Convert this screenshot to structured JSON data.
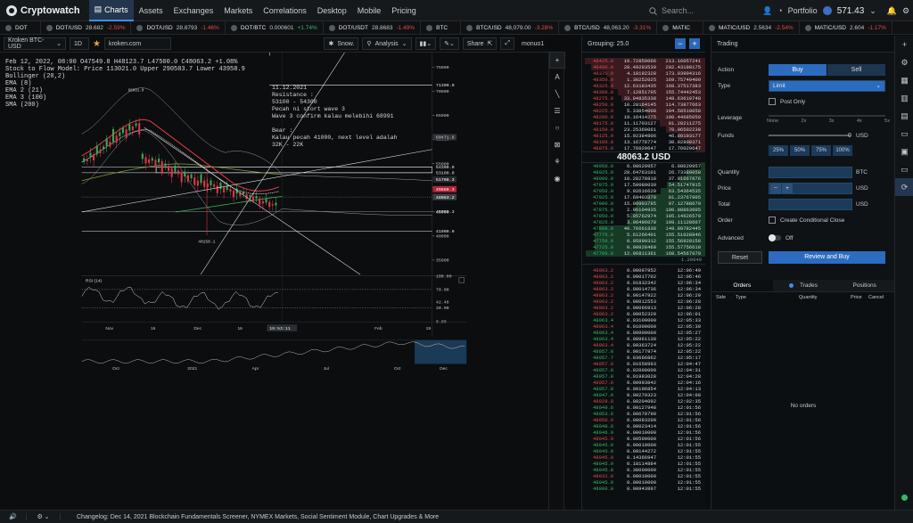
{
  "app": {
    "name": "Cryptowatch"
  },
  "nav": {
    "items": [
      "Charts",
      "Assets",
      "Exchanges",
      "Markets",
      "Correlations",
      "Desktop",
      "Mobile",
      "Pricing"
    ],
    "active": "Charts"
  },
  "search": {
    "placeholder": "Search..."
  },
  "account": {
    "portfolio": "Portfolio",
    "balance": "571.43"
  },
  "ticker": [
    {
      "sym": "DOT",
      "val": "",
      "chg": ""
    },
    {
      "sym": "DOT/USD",
      "val": "28.682",
      "chg": "-2.59%"
    },
    {
      "sym": "DOT/USD",
      "val": "28.8793",
      "chg": "-1.46%"
    },
    {
      "sym": "DOT/BTC",
      "val": "0.000601",
      "chg": "+1.74%"
    },
    {
      "sym": "DOT/USDT",
      "val": "28.8683",
      "chg": "-1.49%"
    },
    {
      "sym": "BTC",
      "val": "",
      "chg": ""
    },
    {
      "sym": "BTC/USD",
      "val": "48,079.00",
      "chg": "-3.28%"
    },
    {
      "sym": "BTC/USD",
      "val": "48,063.20",
      "chg": "-3.31%"
    },
    {
      "sym": "MATIC",
      "val": "",
      "chg": ""
    },
    {
      "sym": "MATIC/USD",
      "val": "2.5634",
      "chg": "-2.54%"
    },
    {
      "sym": "MATIC/USD",
      "val": "2.604",
      "chg": "-1.17%"
    }
  ],
  "chart_toolbar": {
    "market": "Kroken BTC-USD",
    "interval": "1D",
    "exchange": "kroken.com",
    "snow": "Snow.",
    "analysis": "Analysis",
    "share": "Share",
    "user": "monuo1"
  },
  "chart_info": {
    "line1": "Feb 12, 2022, 08:00  O47549.8  H48123.7  L47500.0  C48063.2 +1.08%",
    "line2": "Stock to Flow Model:  Price 113021.0  Upper 290583.7  Lower 43958.9",
    "indicators": [
      "Bollinger (20,2)",
      "EMA (8)",
      "EMA 2 (21)",
      "EMA 3 (100)",
      "SMA (200)"
    ]
  },
  "annotation": {
    "date": "11.12.2021",
    "text": [
      "Resistance :",
      "53100 - 54300",
      "Pecah ni stort wave 3",
      "Wave 3 confirm kalau melebihi 68991",
      "",
      "Bear :",
      "Kalau pecah 41000, next level adalah",
      "32K - 22K"
    ]
  },
  "labels": {
    "low": "40150.1",
    "hi_note": "68991.0",
    "crosshair_time": "19:53:11"
  },
  "chart_data": {
    "type": "candlestick",
    "price_ticks": [
      "75000",
      "70000",
      "65000",
      "60000",
      "55000",
      "50000",
      "45000",
      "40000",
      "35000"
    ],
    "price_labels": [
      {
        "v": "71300.0",
        "c": "#e8e8e8",
        "bg": "transparent"
      },
      {
        "v": "60471.6",
        "c": "#d0d0d0",
        "bg": "#303338"
      },
      {
        "v": "54300.0",
        "c": "#e8e8e8",
        "bg": "transparent"
      },
      {
        "v": "53100.0",
        "c": "#e8e8e8",
        "bg": "transparent"
      },
      {
        "v": "51708.3",
        "c": "#ffffff",
        "bg": "#262a2e"
      },
      {
        "v": "49689.3",
        "c": "#ffffff",
        "bg": "#b02535"
      },
      {
        "v": "48063.2",
        "c": "#ffffff",
        "bg": "#3c4046"
      },
      {
        "v": "45059.3",
        "c": "#e8e8e8",
        "bg": "transparent"
      },
      {
        "v": "41000.0",
        "c": "#e8e8e8",
        "bg": "transparent"
      }
    ],
    "x_ticks": [
      "Nov",
      "16",
      "Dec",
      "16",
      "Jan",
      "Feb",
      "19"
    ],
    "nav_ticks": [
      "Oct",
      "2021",
      "Apr",
      "Jul",
      "Oct",
      "Dec"
    ],
    "rsi": {
      "title": "RSI (14)",
      "ticks": [
        "100.00",
        "70.00",
        "42.48",
        "30.00",
        "0.00"
      ],
      "marker": "18.48"
    }
  },
  "orderbook": {
    "grouping": "Grouping: 25.0",
    "mid": "48063.2 USD",
    "spread": "1.20649",
    "asks": [
      [
        "48425.0",
        "10.72859066",
        "213.16057241"
      ],
      [
        "48400.0",
        "28.49293539",
        "202.43198175"
      ],
      [
        "48375.0",
        "4.18192328",
        "173.93904316"
      ],
      [
        "48350.0",
        "1.38252025",
        "169.75749409"
      ],
      [
        "48325.0",
        "12.63183435",
        "168.37517383"
      ],
      [
        "48300.0",
        "7.12851705",
        "155.74442453"
      ],
      [
        "48275.0",
        "33.94835338",
        "148.63610748"
      ],
      [
        "48250.0",
        "10.28164145",
        "114.73877663"
      ],
      [
        "48225.0",
        "5.33854008",
        "104.58510058"
      ],
      [
        "48200.0",
        "19.16414275",
        "100.44685050"
      ],
      [
        "48175.0",
        "11.11703127",
        "81.28211275"
      ],
      [
        "48150.0",
        "23.25369061",
        "70.06502238"
      ],
      [
        "48125.0",
        "15.92384806",
        "46.80193177"
      ],
      [
        "48100.0",
        "13.16778774",
        "30.92808371"
      ],
      [
        "48075.0",
        "17.76029647",
        "17.76029647"
      ]
    ],
    "bids": [
      [
        "48050.0",
        "6.08629957",
        "6.08629957"
      ],
      [
        "48025.0",
        "20.64763101",
        "26.73389058"
      ],
      [
        "48000.0",
        "10.28278818",
        "37.01667876"
      ],
      [
        "47975.0",
        "17.50080039",
        "54.51747915"
      ],
      [
        "47950.0",
        "9.02616620",
        "63.54364535"
      ],
      [
        "47925.0",
        "17.69403370",
        "81.23767905"
      ],
      [
        "47900.0",
        "15.98903785",
        "97.12788670"
      ],
      [
        "47875.0",
        "2.96104935",
        "100.08863605"
      ],
      [
        "47850.0",
        "5.05762974",
        "105.14626579"
      ],
      [
        "47825.0",
        "3.96496078",
        "109.11128607"
      ],
      [
        "47800.0",
        "40.76661838",
        "149.89782445"
      ],
      [
        "47775.0",
        "5.61266401",
        "155.51028846"
      ],
      [
        "47750.0",
        "0.05899312",
        "155.56928158"
      ],
      [
        "47725.0",
        "0.00828460",
        "155.57756618"
      ],
      [
        "47700.0",
        "12.96811361",
        "168.54567979"
      ]
    ],
    "trades": [
      [
        "48063.2",
        "0.00097952",
        "12:06:49"
      ],
      [
        "48063.2",
        "0.00017702",
        "12:06:46"
      ],
      [
        "48063.2",
        "0.01832342",
        "12:06:34"
      ],
      [
        "48063.2",
        "0.00014736",
        "12:06:34"
      ],
      [
        "48063.2",
        "0.00147922",
        "12:06:29"
      ],
      [
        "48063.2",
        "0.00012553",
        "12:06:28"
      ],
      [
        "48063.2",
        "0.00066913",
        "12:06:28"
      ],
      [
        "48063.2",
        "0.00052329",
        "12:06:01"
      ],
      [
        "48063.4",
        "0.03100000",
        "12:05:33"
      ],
      [
        "48063.4",
        "0.01000000",
        "12:05:30"
      ],
      [
        "48063.4",
        "0.00900000",
        "12:05:27"
      ],
      [
        "48063.4",
        "0.00961138",
        "12:05:22"
      ],
      [
        "48063.4",
        "0.00363724",
        "12:05:22"
      ],
      [
        "48057.8",
        "0.00177974",
        "12:05:22"
      ],
      [
        "48057.7",
        "0.03666862",
        "12:05:17"
      ],
      [
        "48057.8",
        "0.01658993",
        "12:04:47"
      ],
      [
        "48057.8",
        "0.02000000",
        "12:04:31"
      ],
      [
        "48057.8",
        "0.01983028",
        "12:04:28"
      ],
      [
        "48057.8",
        "0.00993842",
        "12:04:16"
      ],
      [
        "48057.8",
        "0.00196854",
        "12:04:13"
      ],
      [
        "48047.9",
        "0.00270323",
        "12:04:08"
      ],
      [
        "48029.0",
        "0.00204092",
        "12:02:35"
      ],
      [
        "48049.6",
        "0.00127948",
        "12:01:56"
      ],
      [
        "48053.6",
        "0.00670798",
        "12:01:56"
      ],
      [
        "48050.0",
        "0.00083200",
        "12:01:56"
      ],
      [
        "48048.8",
        "0.00023414",
        "12:01:56"
      ],
      [
        "48046.9",
        "0.00010000",
        "12:01:56"
      ],
      [
        "48045.9",
        "0.00500000",
        "12:01:56"
      ],
      [
        "48045.9",
        "0.00010000",
        "12:01:55"
      ],
      [
        "48045.9",
        "0.09144272",
        "12:01:55"
      ],
      [
        "48045.9",
        "0.14366947",
        "12:01:55"
      ],
      [
        "48045.9",
        "0.18114884",
        "12:01:55"
      ],
      [
        "48045.8",
        "0.38000000",
        "12:01:55"
      ],
      [
        "48032.0",
        "0.00010000",
        "12:01:55"
      ],
      [
        "48045.9",
        "0.00010000",
        "12:01:55"
      ],
      [
        "48000.0",
        "0.00943897",
        "12:01:55"
      ]
    ]
  },
  "trading": {
    "title": "Trading",
    "action_label": "Action",
    "buy": "Buy",
    "sell": "Sell",
    "type_label": "Type",
    "type_value": "Limit",
    "post_only": "Post Only",
    "leverage_label": "Leverage",
    "leverage_ticks": [
      "None",
      "2x",
      "3x",
      "4x",
      "5x"
    ],
    "funds_label": "Funds",
    "funds_value": "0",
    "funds_unit": "USD",
    "pcts": [
      "25%",
      "50%",
      "75%",
      "100%"
    ],
    "quantity_label": "Quantity",
    "quantity_unit": "BTC",
    "price_label": "Price",
    "price_unit": "USD",
    "total_label": "Total",
    "total_unit": "USD",
    "order_label": "Order",
    "conditional": "Create Conditional Close",
    "advanced_label": "Advanced",
    "advanced_value": "Off",
    "reset": "Reset",
    "review": "Review and Buy"
  },
  "orders": {
    "tabs": [
      "Orders",
      "Trades",
      "Positions"
    ],
    "cols": [
      "Side",
      "Type",
      "Quantity",
      "Price",
      "Cancel"
    ],
    "empty": "No orders"
  },
  "statusbar": {
    "text": "Changelog: Dec 14, 2021 Blockchain Fundamentals Screener, NYMEX Markets, Social Sentiment Module, Chart Upgrades & More"
  }
}
